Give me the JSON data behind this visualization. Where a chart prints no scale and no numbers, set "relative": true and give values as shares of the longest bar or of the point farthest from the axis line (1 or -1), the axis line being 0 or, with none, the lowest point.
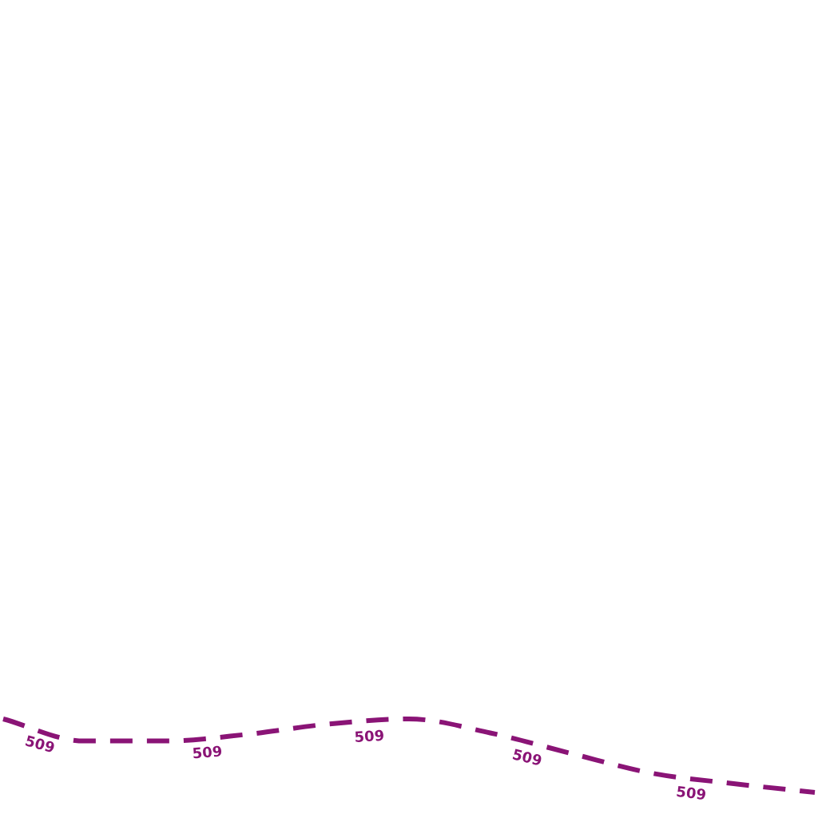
{
  "chart_data": {
    "type": "line",
    "relative": true,
    "legend": false,
    "line_style": "dashed",
    "marker": "none",
    "categories": [
      null,
      null,
      null,
      null,
      null,
      null,
      null,
      null,
      null,
      null,
      null
    ],
    "series": [
      {
        "name": "509",
        "color": "#8a1476",
        "values": [
          1,
          0.7,
          0.7,
          0.79,
          0.93,
          1,
          0.81,
          0.53,
          0.26,
          0.12,
          0
        ]
      }
    ]
  }
}
